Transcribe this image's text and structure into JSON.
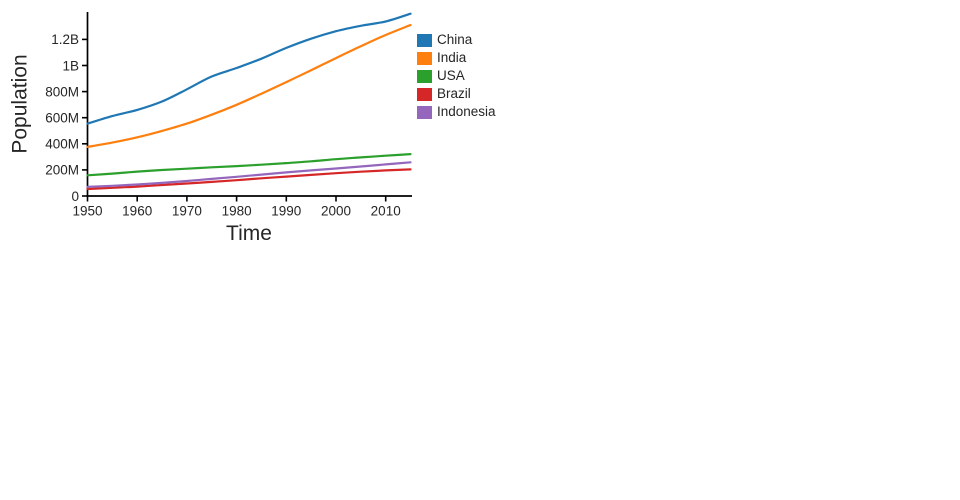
{
  "chart_data": {
    "type": "line",
    "title": "",
    "xlabel": "Time",
    "ylabel": "Population",
    "units": "millions",
    "x": [
      1950,
      1955,
      1960,
      1965,
      1970,
      1975,
      1980,
      1985,
      1990,
      1995,
      2000,
      2005,
      2010,
      2015
    ],
    "series": [
      {
        "name": "China",
        "color": "#1f77b4",
        "values": [
          554,
          612,
          660,
          724,
          818,
          916,
          981,
          1052,
          1135,
          1205,
          1263,
          1304,
          1337,
          1397
        ]
      },
      {
        "name": "India",
        "color": "#ff7f0e",
        "values": [
          376,
          409,
          450,
          499,
          555,
          623,
          699,
          784,
          873,
          964,
          1057,
          1147,
          1234,
          1310
        ]
      },
      {
        "name": "USA",
        "color": "#2ca02c",
        "values": [
          159,
          172,
          187,
          199,
          209,
          220,
          229,
          240,
          252,
          266,
          282,
          296,
          309,
          321
        ]
      },
      {
        "name": "Brazil",
        "color": "#d62728",
        "values": [
          54,
          63,
          72,
          84,
          96,
          108,
          121,
          136,
          149,
          162,
          175,
          186,
          196,
          204
        ]
      },
      {
        "name": "Indonesia",
        "color": "#9467bd",
        "values": [
          70,
          78,
          88,
          100,
          115,
          131,
          147,
          164,
          181,
          196,
          211,
          226,
          242,
          258
        ]
      }
    ],
    "xticks": [
      {
        "value": 1950,
        "label": "1950"
      },
      {
        "value": 1960,
        "label": "1960"
      },
      {
        "value": 1970,
        "label": "1970"
      },
      {
        "value": 1980,
        "label": "1980"
      },
      {
        "value": 1990,
        "label": "1990"
      },
      {
        "value": 2000,
        "label": "2000"
      },
      {
        "value": 2010,
        "label": "2010"
      }
    ],
    "yticks": [
      {
        "value": 0,
        "label": "0"
      },
      {
        "value": 200,
        "label": "200M"
      },
      {
        "value": 400,
        "label": "400M"
      },
      {
        "value": 600,
        "label": "600M"
      },
      {
        "value": 800,
        "label": "800M"
      },
      {
        "value": 1000,
        "label": "1B"
      },
      {
        "value": 1200,
        "label": "1.2B"
      }
    ],
    "xlim": [
      1950,
      2015
    ],
    "ylim": [
      0,
      1420
    ],
    "grid": false,
    "legend_position": "right",
    "colors": {
      "axis": "#000000",
      "text": "#262626",
      "background": "#ffffff"
    }
  }
}
